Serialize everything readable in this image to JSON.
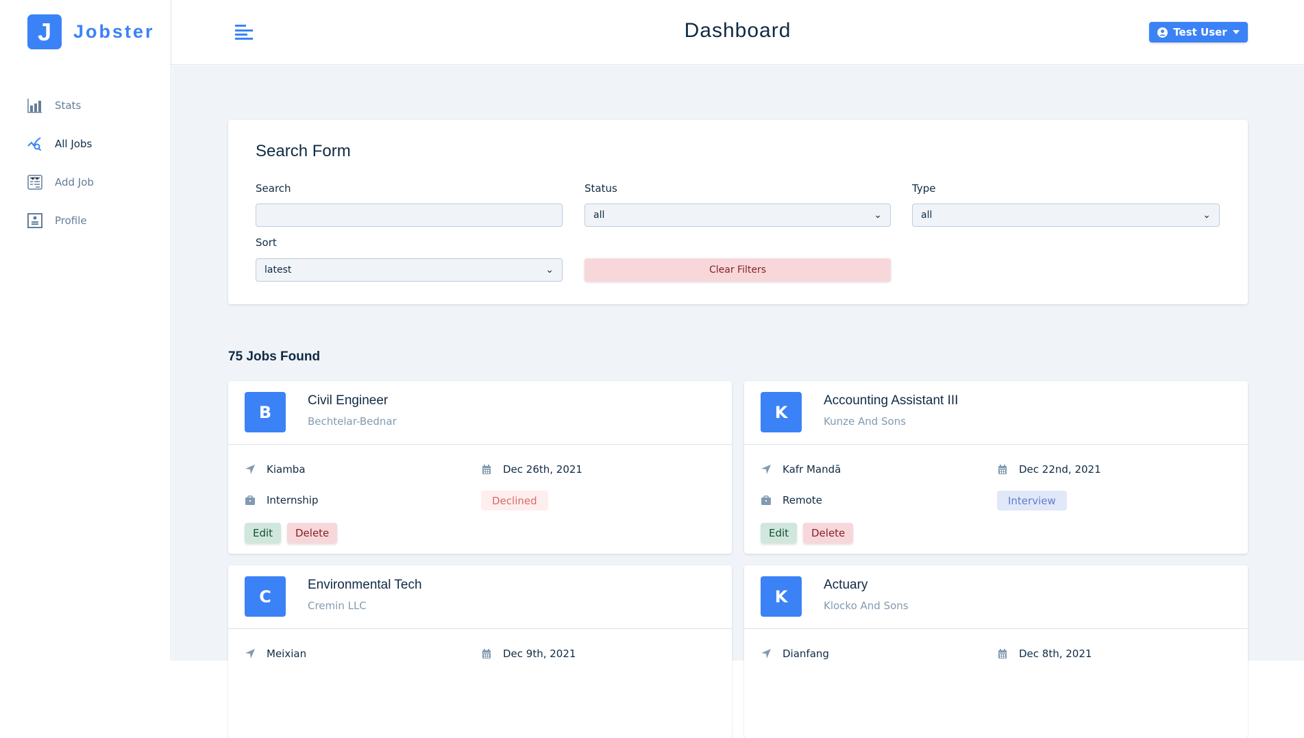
{
  "brand": {
    "logo_letter": "J",
    "name": "Jobster",
    "accent": "#3b82f6"
  },
  "sidebar": {
    "items": [
      {
        "label": "Stats",
        "icon": "bar-chart-icon",
        "active": false
      },
      {
        "label": "All Jobs",
        "icon": "query-stats-icon",
        "active": true
      },
      {
        "label": "Add Job",
        "icon": "form-icon",
        "active": false
      },
      {
        "label": "Profile",
        "icon": "profile-card-icon",
        "active": false
      }
    ]
  },
  "header": {
    "title": "Dashboard",
    "user_label": "Test User"
  },
  "search_form": {
    "title": "Search Form",
    "search_label": "Search",
    "search_value": "",
    "status_label": "Status",
    "status_value": "all",
    "type_label": "Type",
    "type_value": "all",
    "sort_label": "Sort",
    "sort_value": "latest",
    "clear_label": "Clear Filters"
  },
  "jobs_found": "75 Jobs Found",
  "job_actions": {
    "edit": "Edit",
    "delete": "Delete"
  },
  "status_colors": {
    "Declined": {
      "bg": "#ffeeee",
      "fg": "#d66a6a"
    },
    "Interview": {
      "bg": "#e0e8f9",
      "fg": "#647acb"
    }
  },
  "jobs": [
    {
      "letter": "B",
      "position": "Civil Engineer",
      "company": "Bechtelar-Bednar",
      "location": "Kiamba",
      "date": "Dec 26th, 2021",
      "type": "Internship",
      "status": "Declined"
    },
    {
      "letter": "K",
      "position": "Accounting Assistant III",
      "company": "Kunze And Sons",
      "location": "Kafr Mandā",
      "date": "Dec 22nd, 2021",
      "type": "Remote",
      "status": "Interview"
    },
    {
      "letter": "C",
      "position": "Environmental Tech",
      "company": "Cremin LLC",
      "location": "Meixian",
      "date": "Dec 9th, 2021"
    },
    {
      "letter": "K",
      "position": "Actuary",
      "company": "Klocko And Sons",
      "location": "Dianfang",
      "date": "Dec 8th, 2021"
    }
  ]
}
